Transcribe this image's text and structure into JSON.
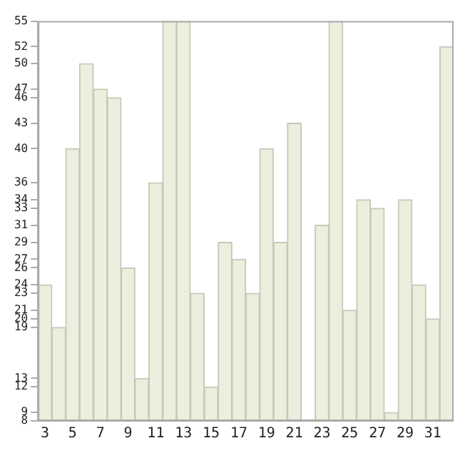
{
  "chart_data": {
    "type": "bar",
    "categories": [
      "3",
      null,
      "5",
      null,
      "7",
      null,
      "9",
      null,
      "11",
      null,
      "13",
      null,
      "15",
      null,
      "17",
      null,
      "19",
      null,
      "21",
      null,
      "23",
      null,
      "25",
      null,
      "27",
      null,
      "29",
      null,
      "31",
      null
    ],
    "values": [
      24,
      19,
      40,
      50,
      47,
      46,
      26,
      13,
      36,
      55,
      55,
      23,
      12,
      29,
      27,
      23,
      40,
      29,
      43,
      8,
      31,
      55,
      21,
      34,
      33,
      9,
      34,
      24,
      20,
      52
    ],
    "color": "#eeeedf",
    "ylim": [
      8,
      55
    ],
    "yticks": [
      8,
      9,
      12,
      13,
      19,
      20,
      21,
      23,
      24,
      26,
      27,
      29,
      31,
      33,
      34,
      36,
      40,
      43,
      46,
      47,
      50,
      52,
      55
    ],
    "grid": false,
    "legend": false
  }
}
